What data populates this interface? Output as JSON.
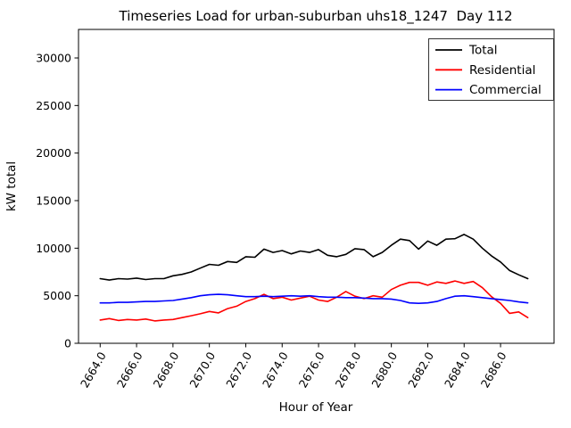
{
  "chart_data": {
    "type": "line",
    "title": "Timeseries Load for urban-suburban uhs18_1247  Day 112",
    "xlabel": "Hour of Year",
    "ylabel": "kW total",
    "xlim": [
      2662.81,
      2688.94
    ],
    "ylim": [
      0,
      33000
    ],
    "grid": false,
    "legend_position": "upper right",
    "x_ticks": [
      {
        "value": 2664,
        "label": "2664.0"
      },
      {
        "value": 2666,
        "label": "2666.0"
      },
      {
        "value": 2668,
        "label": "2668.0"
      },
      {
        "value": 2670,
        "label": "2670.0"
      },
      {
        "value": 2672,
        "label": "2672.0"
      },
      {
        "value": 2674,
        "label": "2674.0"
      },
      {
        "value": 2676,
        "label": "2676.0"
      },
      {
        "value": 2678,
        "label": "2678.0"
      },
      {
        "value": 2680,
        "label": "2680.0"
      },
      {
        "value": 2682,
        "label": "2682.0"
      },
      {
        "value": 2684,
        "label": "2684.0"
      },
      {
        "value": 2686,
        "label": "2686.0"
      }
    ],
    "y_ticks": [
      {
        "value": 0,
        "label": "0"
      },
      {
        "value": 5000,
        "label": "5000"
      },
      {
        "value": 10000,
        "label": "10000"
      },
      {
        "value": 15000,
        "label": "15000"
      },
      {
        "value": 20000,
        "label": "20000"
      },
      {
        "value": 25000,
        "label": "25000"
      },
      {
        "value": 30000,
        "label": "30000"
      }
    ],
    "x": [
      2664.0,
      2664.5,
      2665.0,
      2665.5,
      2666.0,
      2666.5,
      2667.0,
      2667.5,
      2668.0,
      2668.5,
      2669.0,
      2669.5,
      2670.0,
      2670.5,
      2671.0,
      2671.5,
      2672.0,
      2672.5,
      2673.0,
      2673.5,
      2674.0,
      2674.5,
      2675.0,
      2675.5,
      2676.0,
      2676.5,
      2677.0,
      2677.5,
      2678.0,
      2678.5,
      2679.0,
      2679.5,
      2680.0,
      2680.5,
      2681.0,
      2681.5,
      2682.0,
      2682.5,
      2683.0,
      2683.5,
      2684.0,
      2684.5,
      2685.0,
      2685.5,
      2686.0,
      2686.5,
      2687.0,
      2687.5
    ],
    "series": [
      {
        "name": "Total",
        "color": "#000000",
        "values": [
          6800,
          6650,
          6800,
          6750,
          6850,
          6700,
          6800,
          6800,
          7100,
          7250,
          7500,
          7900,
          8300,
          8200,
          8600,
          8500,
          9100,
          9050,
          9900,
          9550,
          9750,
          9400,
          9700,
          9550,
          9850,
          9250,
          9100,
          9350,
          9950,
          9850,
          9100,
          9550,
          10300,
          10950,
          10800,
          9900,
          10750,
          10300,
          10950,
          11000,
          11450,
          10950,
          10000,
          9200,
          8550,
          7650,
          7200,
          6800
        ]
      },
      {
        "name": "Residential",
        "color": "#ff0000",
        "values": [
          2450,
          2600,
          2400,
          2500,
          2450,
          2550,
          2350,
          2450,
          2500,
          2700,
          2900,
          3100,
          3350,
          3200,
          3650,
          3900,
          4400,
          4700,
          5150,
          4700,
          4850,
          4550,
          4750,
          4950,
          4550,
          4400,
          4850,
          5450,
          4950,
          4700,
          5000,
          4850,
          5650,
          6100,
          6400,
          6400,
          6100,
          6450,
          6300,
          6550,
          6300,
          6500,
          5850,
          4900,
          4200,
          3150,
          3300,
          2700
        ]
      },
      {
        "name": "Commercial",
        "color": "#0000ff",
        "values": [
          4250,
          4250,
          4300,
          4300,
          4350,
          4400,
          4400,
          4450,
          4500,
          4650,
          4800,
          5000,
          5100,
          5150,
          5100,
          5000,
          4900,
          4900,
          4950,
          4900,
          4950,
          5000,
          4950,
          5000,
          4900,
          4850,
          4850,
          4800,
          4800,
          4750,
          4700,
          4700,
          4650,
          4500,
          4250,
          4200,
          4250,
          4400,
          4700,
          4950,
          5000,
          4900,
          4800,
          4700,
          4600,
          4500,
          4350,
          4250
        ]
      }
    ]
  }
}
